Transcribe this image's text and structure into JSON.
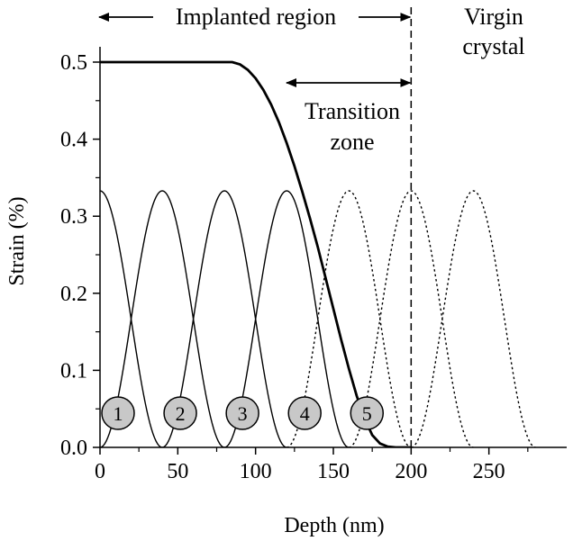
{
  "chart_data": {
    "type": "line",
    "xlabel": "Depth (nm)",
    "ylabel": "Strain (%)",
    "xlim": [
      0,
      300
    ],
    "ylim": [
      0,
      0.5
    ],
    "x_ticks": [
      "0",
      "50",
      "100",
      "150",
      "200",
      "250"
    ],
    "y_ticks": [
      "0.0",
      "0.1",
      "0.2",
      "0.3",
      "0.4",
      "0.5"
    ],
    "grid": false,
    "legend": "none",
    "series": [
      {
        "style": "thick-solid",
        "x": [
          0,
          70,
          85,
          90,
          95,
          100,
          105,
          110,
          115,
          120,
          125,
          130,
          135,
          140,
          145,
          150,
          155,
          160,
          165,
          170,
          175,
          180,
          185,
          190,
          200
        ],
        "y": [
          0.5,
          0.5,
          0.5,
          0.497,
          0.49,
          0.479,
          0.464,
          0.445,
          0.422,
          0.395,
          0.365,
          0.332,
          0.297,
          0.26,
          0.22,
          0.18,
          0.14,
          0.102,
          0.067,
          0.038,
          0.016,
          0.005,
          0.001,
          0.0,
          0.0
        ]
      },
      {
        "style": "thin-solid",
        "label": "1",
        "center": 0,
        "peak": 0.333,
        "width": 40
      },
      {
        "style": "thin-solid",
        "label": "2",
        "center": 40,
        "peak": 0.333,
        "width": 40
      },
      {
        "style": "thin-solid",
        "label": "3",
        "center": 80,
        "peak": 0.333,
        "width": 40
      },
      {
        "style": "thin-solid",
        "label": "4",
        "center": 120,
        "peak": 0.333,
        "width": 40
      },
      {
        "style": "dotted",
        "label": "5",
        "center": 160,
        "peak": 0.333,
        "width": 40
      },
      {
        "style": "dotted",
        "center": 200,
        "peak": 0.333,
        "width": 40
      },
      {
        "style": "dotted",
        "center": 240,
        "peak": 0.333,
        "width": 40
      }
    ],
    "boundary_x": 200,
    "annotations": {
      "implanted": "Implanted region",
      "virgin_line1": "Virgin",
      "virgin_line2": "crystal",
      "transition_line1": "Transition",
      "transition_line2": "zone"
    },
    "markers": [
      "1",
      "2",
      "3",
      "4",
      "5"
    ]
  }
}
